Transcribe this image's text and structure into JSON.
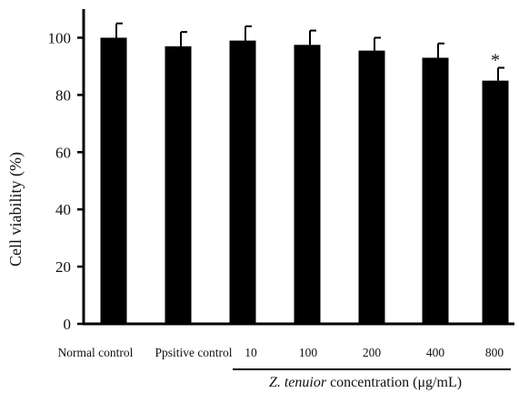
{
  "chart_data": {
    "type": "bar",
    "categories": [
      "Normal control",
      "Ppsitive control",
      "10",
      "100",
      "200",
      "400",
      "800"
    ],
    "values": [
      100,
      97,
      99,
      97.5,
      95.5,
      93,
      85
    ],
    "errors": [
      5,
      5,
      5,
      5,
      4.5,
      5,
      4.5
    ],
    "annotations": [
      "",
      "",
      "",
      "",
      "",
      "",
      "*"
    ],
    "ylabel": "Cell viability (%)",
    "ylim": [
      0,
      110
    ],
    "yticks": [
      0,
      20,
      40,
      60,
      80,
      100
    ],
    "group_label": {
      "italic": "Z. tenuior",
      "rest": " concentration (μg/mL)"
    },
    "grid": false,
    "bar_color": "#000000"
  }
}
